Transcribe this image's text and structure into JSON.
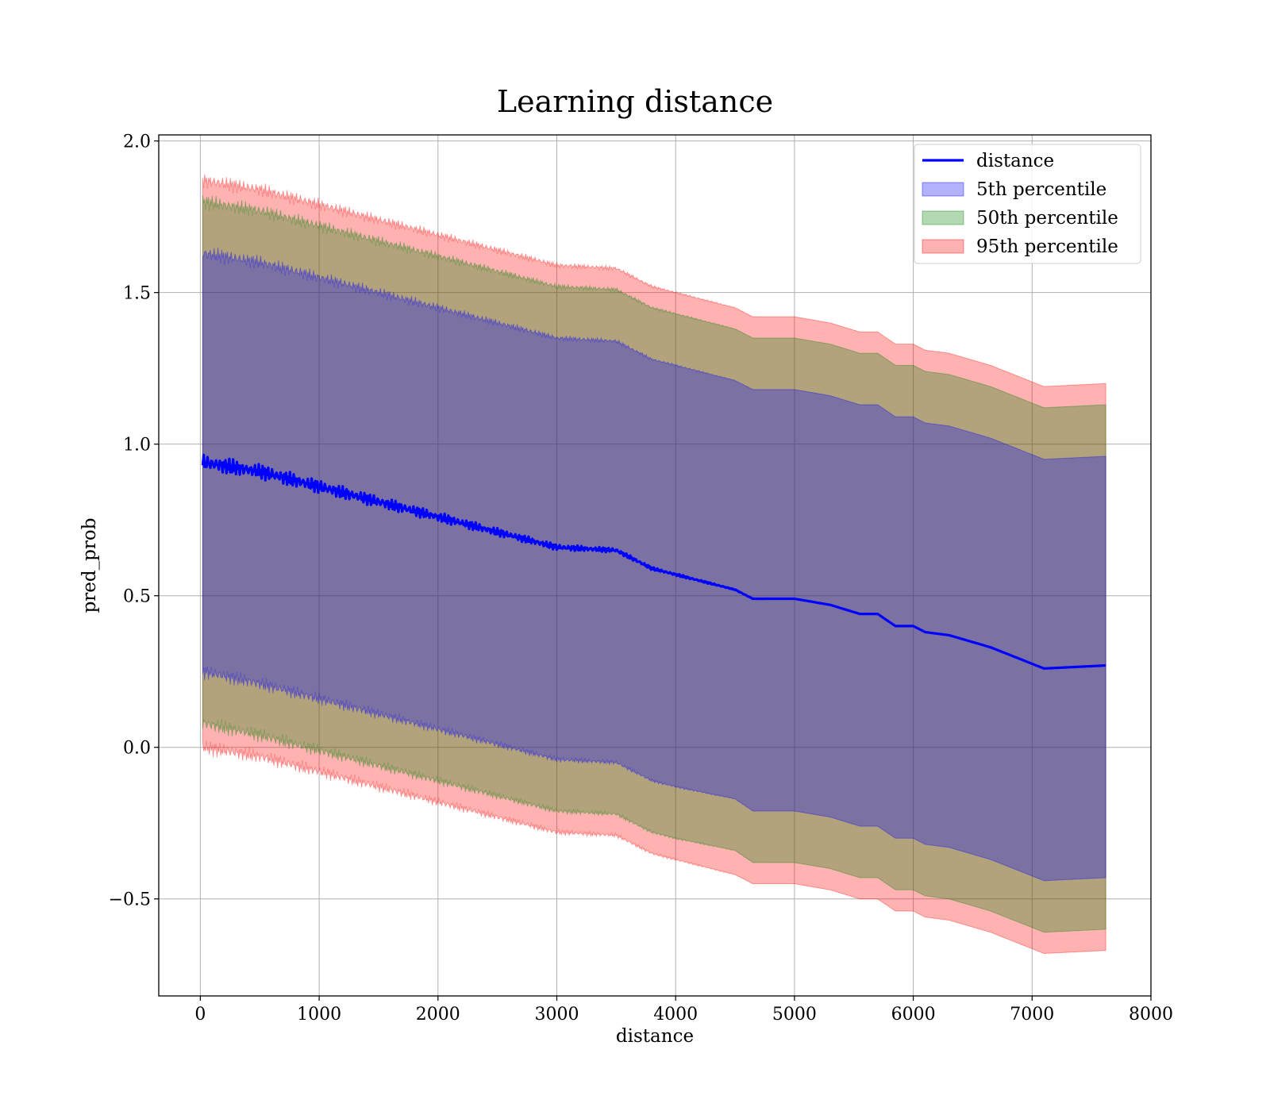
{
  "chart_data": {
    "type": "area",
    "title": "Learning distance",
    "xlabel": "distance",
    "ylabel": "pred_prob",
    "xlim": [
      -350,
      8000
    ],
    "ylim": [
      -0.82,
      2.02
    ],
    "xticks": [
      0,
      1000,
      2000,
      3000,
      4000,
      5000,
      6000,
      7000,
      8000
    ],
    "xtick_labels": [
      "0",
      "1000",
      "2000",
      "3000",
      "4000",
      "5000",
      "6000",
      "7000",
      "8000"
    ],
    "yticks": [
      -0.5,
      0.0,
      0.5,
      1.0,
      1.5,
      2.0
    ],
    "ytick_labels": [
      "−0.5",
      "0.0",
      "0.5",
      "1.0",
      "1.5",
      "2.0"
    ],
    "grid": true,
    "legend_position": "top-right",
    "x": [
      20,
      500,
      1000,
      1500,
      2000,
      2500,
      3000,
      3500,
      3800,
      4000,
      4500,
      4650,
      5000,
      5300,
      5550,
      5700,
      5850,
      6000,
      6100,
      6300,
      6650,
      7100,
      7620
    ],
    "series": [
      {
        "name": "distance",
        "kind": "line",
        "color": "#0000ff",
        "values": [
          0.94,
          0.91,
          0.86,
          0.81,
          0.76,
          0.71,
          0.66,
          0.65,
          0.59,
          0.57,
          0.52,
          0.49,
          0.49,
          0.47,
          0.44,
          0.44,
          0.4,
          0.4,
          0.38,
          0.37,
          0.33,
          0.26,
          0.27
        ]
      },
      {
        "name": "5th percentile",
        "kind": "band",
        "color": "#0000ff",
        "lower": [
          0.25,
          0.21,
          0.16,
          0.11,
          0.06,
          0.01,
          -0.04,
          -0.05,
          -0.11,
          -0.13,
          -0.17,
          -0.21,
          -0.21,
          -0.23,
          -0.26,
          -0.26,
          -0.3,
          -0.3,
          -0.32,
          -0.33,
          -0.37,
          -0.44,
          -0.43
        ],
        "upper": [
          1.63,
          1.6,
          1.55,
          1.5,
          1.45,
          1.4,
          1.35,
          1.34,
          1.28,
          1.26,
          1.21,
          1.18,
          1.18,
          1.16,
          1.13,
          1.13,
          1.09,
          1.09,
          1.07,
          1.06,
          1.02,
          0.95,
          0.96
        ]
      },
      {
        "name": "50th percentile",
        "kind": "band",
        "color": "#008000",
        "lower": [
          0.08,
          0.04,
          -0.01,
          -0.06,
          -0.11,
          -0.16,
          -0.21,
          -0.22,
          -0.28,
          -0.3,
          -0.34,
          -0.38,
          -0.38,
          -0.4,
          -0.43,
          -0.43,
          -0.47,
          -0.47,
          -0.49,
          -0.5,
          -0.54,
          -0.61,
          -0.6
        ],
        "upper": [
          1.8,
          1.77,
          1.72,
          1.67,
          1.62,
          1.57,
          1.52,
          1.51,
          1.45,
          1.43,
          1.38,
          1.35,
          1.35,
          1.33,
          1.3,
          1.3,
          1.26,
          1.26,
          1.24,
          1.23,
          1.19,
          1.12,
          1.13
        ]
      },
      {
        "name": "95th percentile",
        "kind": "band",
        "color": "#ff0000",
        "lower": [
          0.0,
          -0.03,
          -0.08,
          -0.13,
          -0.18,
          -0.23,
          -0.28,
          -0.29,
          -0.35,
          -0.37,
          -0.42,
          -0.45,
          -0.45,
          -0.47,
          -0.5,
          -0.5,
          -0.54,
          -0.54,
          -0.56,
          -0.57,
          -0.61,
          -0.68,
          -0.67
        ],
        "upper": [
          1.87,
          1.84,
          1.79,
          1.74,
          1.69,
          1.64,
          1.59,
          1.58,
          1.52,
          1.5,
          1.45,
          1.42,
          1.42,
          1.4,
          1.37,
          1.37,
          1.33,
          1.33,
          1.31,
          1.3,
          1.26,
          1.19,
          1.2
        ]
      }
    ]
  }
}
